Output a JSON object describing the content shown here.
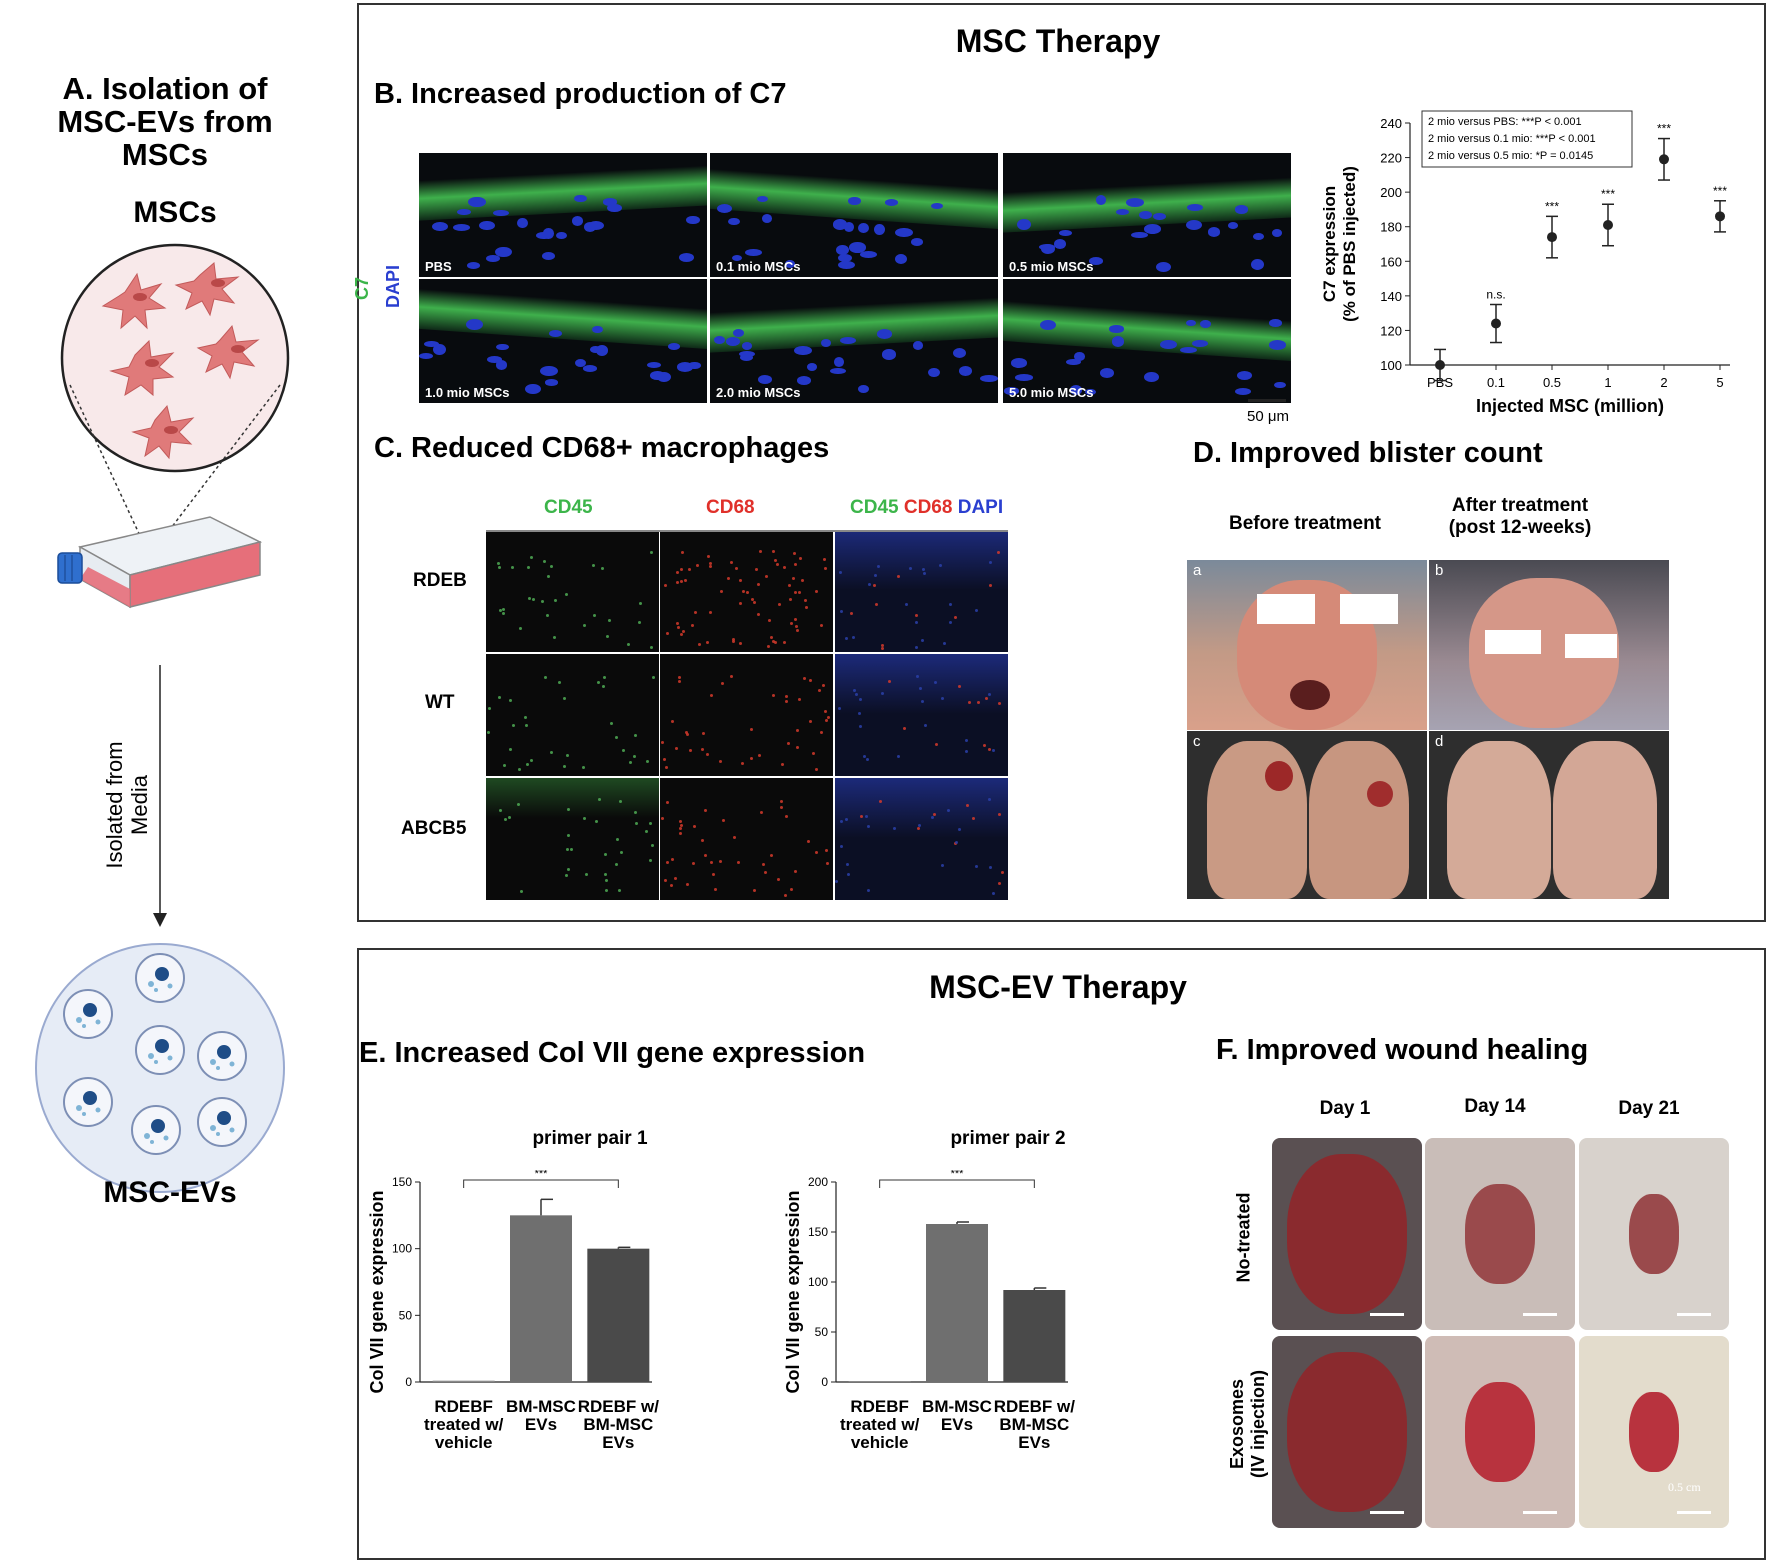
{
  "panelA": {
    "title": "A. Isolation of MSC-EVs from MSCs",
    "mscs_label": "MSCs",
    "arrow_label": "Isolated from Media",
    "evs_label": "MSC-EVs"
  },
  "msc_therapy": {
    "header": "MSC Therapy",
    "panelB": {
      "title": "B. Increased production of C7",
      "stain_c7": "C7",
      "stain_dapi": "DAPI",
      "images": [
        "PBS",
        "0.1 mio MSCs",
        "0.5 mio MSCs",
        "1.0 mio MSCs",
        "2.0 mio MSCs",
        "5.0 mio MSCs"
      ],
      "scale_bar": "50 μm"
    },
    "panelC": {
      "title": "C. Reduced CD68+ macrophages",
      "col_cd45": "CD45",
      "col_cd68": "CD68",
      "col_merge_cd45": "CD45",
      "col_merge_cd68": "CD68",
      "col_merge_dapi": "DAPI",
      "rows": [
        "RDEB",
        "WT",
        "ABCB5"
      ]
    },
    "panelD": {
      "title": "D. Improved blister count",
      "before": "Before treatment",
      "after_line1": "After  treatment",
      "after_line2": "(post 12-weeks)",
      "letters": [
        "a",
        "b",
        "c",
        "d"
      ]
    }
  },
  "ev_therapy": {
    "header": "MSC-EV Therapy",
    "panelE": {
      "title": "E. Increased Col VII gene expression"
    },
    "panelF": {
      "title": "F. Improved wound healing",
      "days": [
        "Day 1",
        "Day 14",
        "Day 21"
      ],
      "row_untreated": "No-treated",
      "row_exo1": "Exosomes",
      "row_exo2": "(IV injection)",
      "scale": "0.5 cm"
    }
  },
  "colors": {
    "green": "#3cb54a",
    "red": "#e0302a",
    "blue": "#2a3fd0",
    "cell_pink": "#e57373",
    "ev_circle": "#e8eef8"
  },
  "chart_data": [
    {
      "type": "scatter",
      "xlabel": "Injected MSC (million)",
      "ylabel_line1": "C7 expression",
      "ylabel_line2": "(% of PBS injected)",
      "categories": [
        "PBS",
        "0.1",
        "0.5",
        "1",
        "2",
        "5"
      ],
      "values": [
        100,
        124,
        174,
        181,
        219,
        186
      ],
      "errors": [
        9,
        11,
        12,
        12,
        12,
        9
      ],
      "significance": [
        "",
        "n.s.",
        "***",
        "***",
        "***",
        "***"
      ],
      "ylim": [
        100,
        240
      ],
      "yticks": [
        100,
        120,
        140,
        160,
        180,
        200,
        220,
        240
      ],
      "legend": [
        "2 mio versus PBS:          ***P < 0.001",
        "2 mio versus 0.1 mio:   ***P < 0.001",
        "2 mio versus 0.5 mio:     *P = 0.0145"
      ],
      "legend_position": "top-left"
    },
    {
      "type": "bar",
      "title": "primer pair 1",
      "ylabel": "Col VII gene expression",
      "categories": [
        [
          "RDEBF",
          "treated w/",
          "vehicle"
        ],
        [
          "BM-MSC",
          "EVs"
        ],
        [
          "RDEBF w/",
          "BM-MSC",
          "EVs"
        ]
      ],
      "values": [
        1,
        125,
        100
      ],
      "errors": [
        0,
        12,
        1
      ],
      "ylim": [
        0,
        150
      ],
      "yticks": [
        0,
        50,
        100,
        150
      ],
      "significance": "***",
      "bar_colors": [
        "#8a8a8a",
        "#6f6f6f",
        "#4a4a4a"
      ]
    },
    {
      "type": "bar",
      "title": "primer pair 2",
      "ylabel": "Col VII gene expression",
      "categories": [
        [
          "RDEBF",
          "treated w/",
          "vehicle"
        ],
        [
          "BM-MSC",
          "EVs"
        ],
        [
          "RDEBF w/",
          "BM-MSC",
          "EVs"
        ]
      ],
      "values": [
        1,
        158,
        92
      ],
      "errors": [
        0,
        2,
        2
      ],
      "ylim": [
        0,
        200
      ],
      "yticks": [
        0,
        50,
        100,
        150,
        200
      ],
      "significance": "***",
      "bar_colors": [
        "#8a8a8a",
        "#6f6f6f",
        "#4a4a4a"
      ]
    }
  ]
}
